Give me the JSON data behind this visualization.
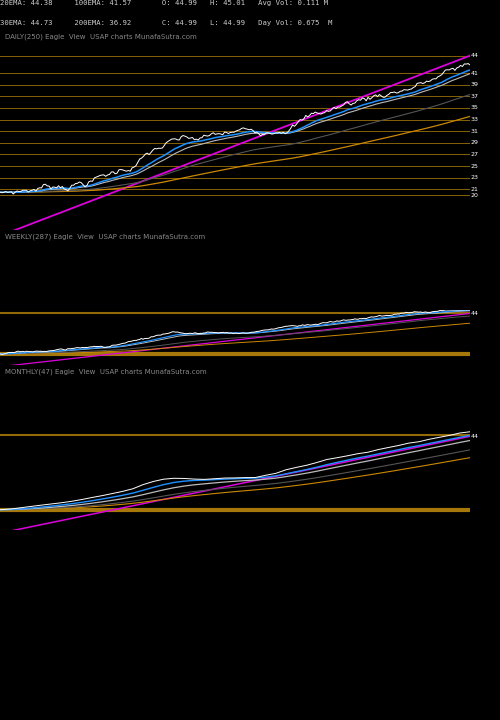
{
  "background_color": "#000000",
  "panels": [
    {
      "label": "DAILY(250) Eagle  View  USAP charts MunafaSutra.com",
      "header_lines": [
        "20EMA: 44.38     100EMA: 41.57       O: 44.99   H: 45.01   Avg Vol: 0.111 M",
        "30EMA: 44.73     200EMA: 36.92       C: 44.99   L: 44.99   Day Vol: 0.675  M"
      ],
      "y_ticks": [
        44,
        41,
        39,
        37,
        35,
        33,
        31,
        29,
        27,
        25,
        23,
        21,
        20
      ],
      "y_min": 14.0,
      "y_max": 46.0
    },
    {
      "label": "WEEKLY(287) Eagle  View  USAP charts MunafaSutra.com",
      "y_ticks": [
        44
      ],
      "y_min": 14.0,
      "y_max": 46.0
    },
    {
      "label": "MONTHLY(47) Eagle  View  USAP charts MunafaSutra.com",
      "y_ticks": [
        44
      ],
      "y_min": 14.0,
      "y_max": 46.0
    }
  ],
  "hline_color": "#b8860b",
  "hline_alpha": 0.85,
  "price_line_color": "#ffffff",
  "ema_blue_color": "#1e90ff",
  "ema_gray1_color": "#888888",
  "ema_gray2_color": "#bbbbbb",
  "ema_gray3_color": "#555555",
  "magenta_color": "#dd00dd",
  "gold_color": "#cc8800"
}
